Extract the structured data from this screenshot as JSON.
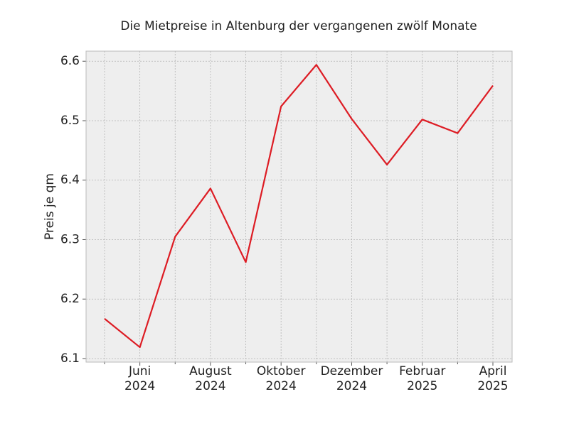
{
  "chart_data": {
    "type": "line",
    "title": "Die Mietpreise in Altenburg der vergangenen zwölf Monate",
    "ylabel": "Preis je qm",
    "categories": [
      null,
      "Juni\n2024",
      null,
      "August\n2024",
      null,
      "Oktober\n2024",
      null,
      "Dezember\n2024",
      null,
      "Februar\n2025",
      null,
      "April\n2025"
    ],
    "series": [
      {
        "name": "Preis je qm",
        "color": "#dd1c24",
        "values": [
          6.167,
          6.119,
          6.305,
          6.386,
          6.262,
          6.524,
          6.594,
          6.503,
          6.426,
          6.502,
          6.479,
          6.559
        ]
      }
    ],
    "ylim": [
      6.094,
      6.617
    ],
    "yticks": [
      6.1,
      6.2,
      6.3,
      6.4,
      6.5,
      6.6
    ],
    "grid": true
  }
}
